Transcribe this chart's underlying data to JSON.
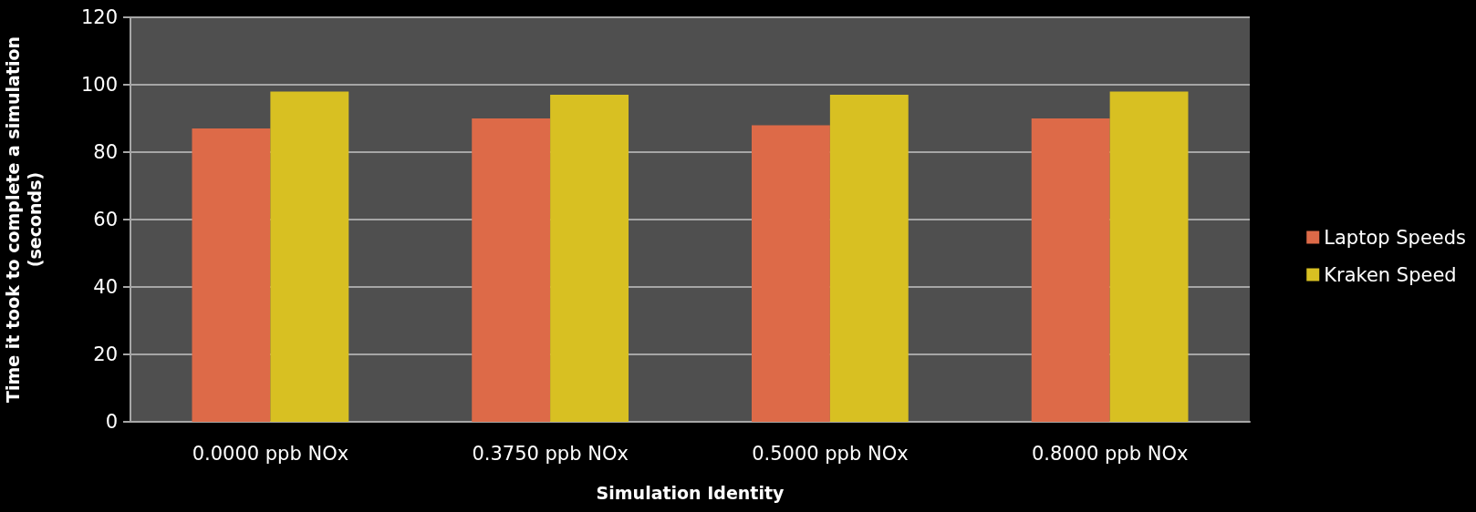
{
  "chart_data": {
    "type": "bar",
    "xlabel": "Simulation Identity",
    "ylabel": "Time it took to complete a simulation (seconds)",
    "categories": [
      "0.0000 ppb NOx",
      "0.3750 ppb NOx",
      "0.5000 ppb NOx",
      "0.8000 ppb NOx"
    ],
    "series": [
      {
        "name": "Laptop Speeds",
        "color": "#dd6a48",
        "values": [
          87,
          90,
          88,
          90
        ]
      },
      {
        "name": "Kraken Speed",
        "color": "#d8c022",
        "values": [
          98,
          97,
          97,
          98
        ]
      }
    ],
    "ylim": [
      0,
      120
    ],
    "yticks": [
      0,
      20,
      40,
      60,
      80,
      100,
      120
    ],
    "grid": "y",
    "legend": "right"
  }
}
